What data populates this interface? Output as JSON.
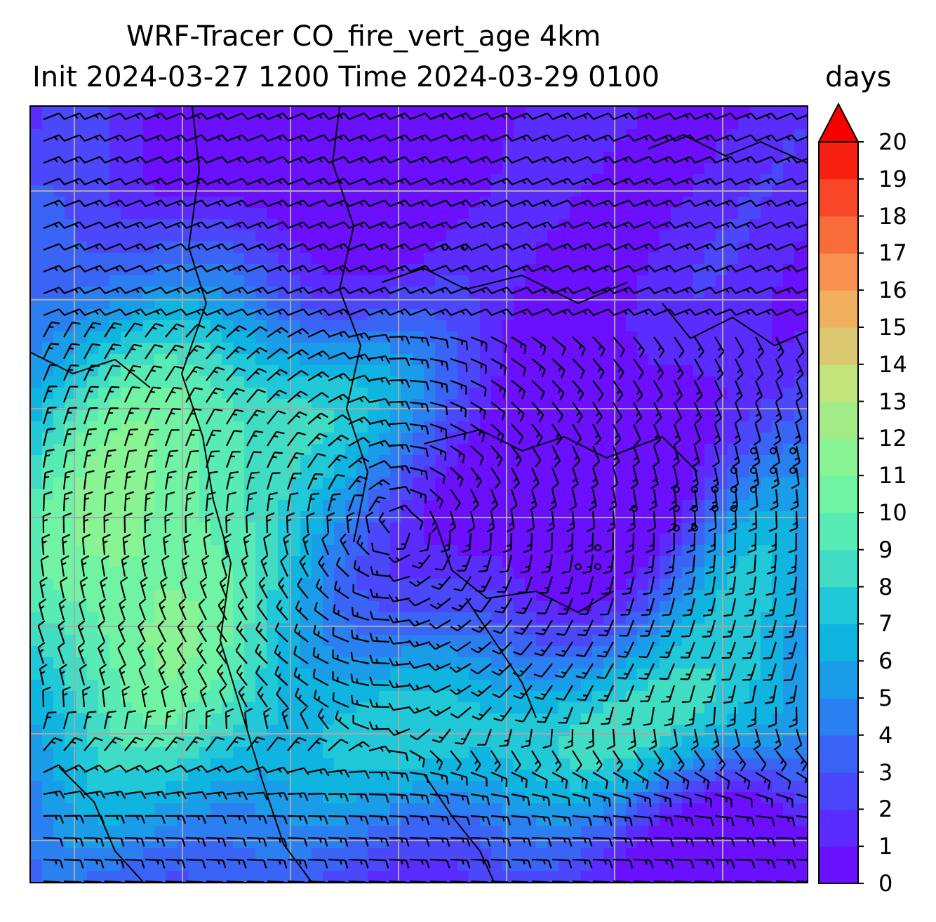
{
  "title": {
    "line1": "WRF-Tracer CO_fire_vert_age 4km",
    "line2": "Init 2024-03-27 1200 Time 2024-03-29 0100"
  },
  "colorbar": {
    "units": "days",
    "min": 0,
    "max": 20,
    "extend": "max",
    "ticks": [
      "0",
      "1",
      "2",
      "3",
      "4",
      "5",
      "6",
      "7",
      "8",
      "9",
      "10",
      "11",
      "12",
      "13",
      "14",
      "15",
      "16",
      "17",
      "18",
      "19",
      "20"
    ],
    "colors": [
      "#6a10ff",
      "#5a2cff",
      "#4a48fa",
      "#3a64f6",
      "#2a80f0",
      "#1a9ce8",
      "#10b4e0",
      "#20c8d8",
      "#40dcc4",
      "#58ecb4",
      "#70f4a4",
      "#88f494",
      "#a4ec88",
      "#c4e47c",
      "#dcc870",
      "#f0b060",
      "#f89050",
      "#f86c3c",
      "#f84628",
      "#f82010",
      "#f80000"
    ]
  },
  "map": {
    "field": "CO_fire_vert_age",
    "level": "4km",
    "overlay": "wind barbs",
    "gridlines": true,
    "coastlines": true
  }
}
